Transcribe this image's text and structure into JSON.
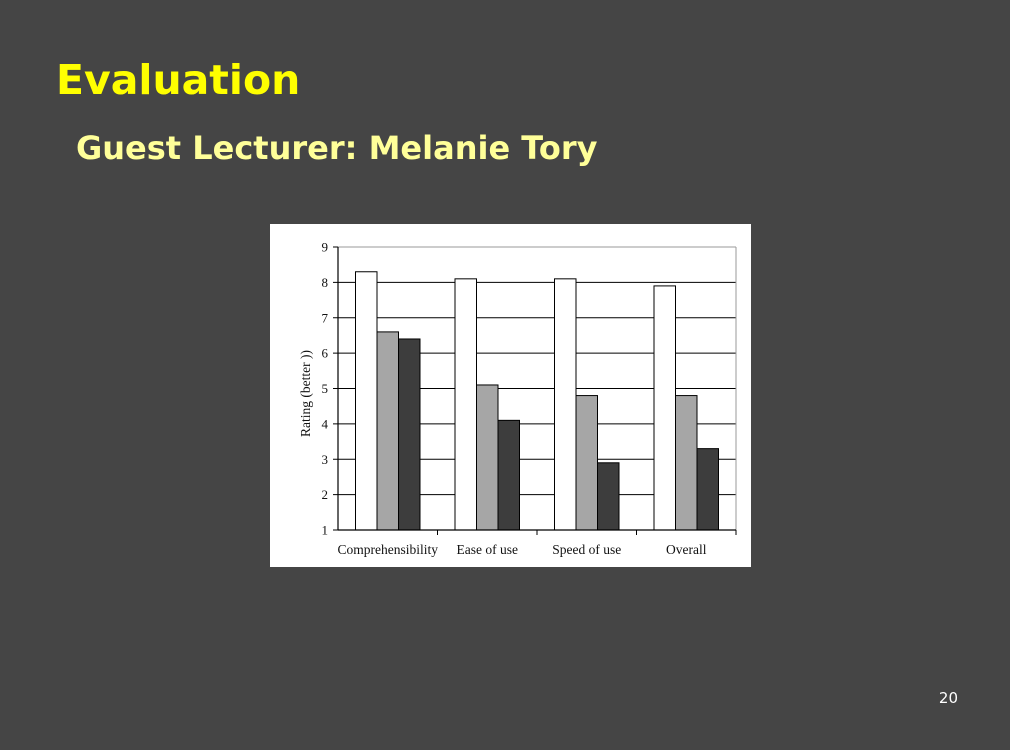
{
  "slide": {
    "title": "Evaluation",
    "subtitle": "Guest Lecturer: Melanie Tory",
    "page_number": "20"
  },
  "colors": {
    "background": "#454545",
    "title": "#ffff00",
    "subtitle": "#ffff99",
    "series": [
      "#ffffff",
      "#a6a6a6",
      "#3d3d3d"
    ]
  },
  "chart_data": {
    "type": "bar",
    "title": "",
    "xlabel": "",
    "ylabel": "Rating (better ))",
    "categories": [
      "Comprehensibility",
      "Ease of use",
      "Speed of use",
      "Overall"
    ],
    "series": [
      {
        "values": [
          8.3,
          8.1,
          8.1,
          7.9
        ]
      },
      {
        "values": [
          6.6,
          5.1,
          4.8,
          4.8
        ]
      },
      {
        "values": [
          6.4,
          4.1,
          2.9,
          3.3
        ]
      }
    ],
    "ylim": [
      1,
      9
    ],
    "yticks": [
      1,
      2,
      3,
      4,
      5,
      6,
      7,
      8,
      9
    ],
    "grid": true,
    "legend": "none"
  }
}
